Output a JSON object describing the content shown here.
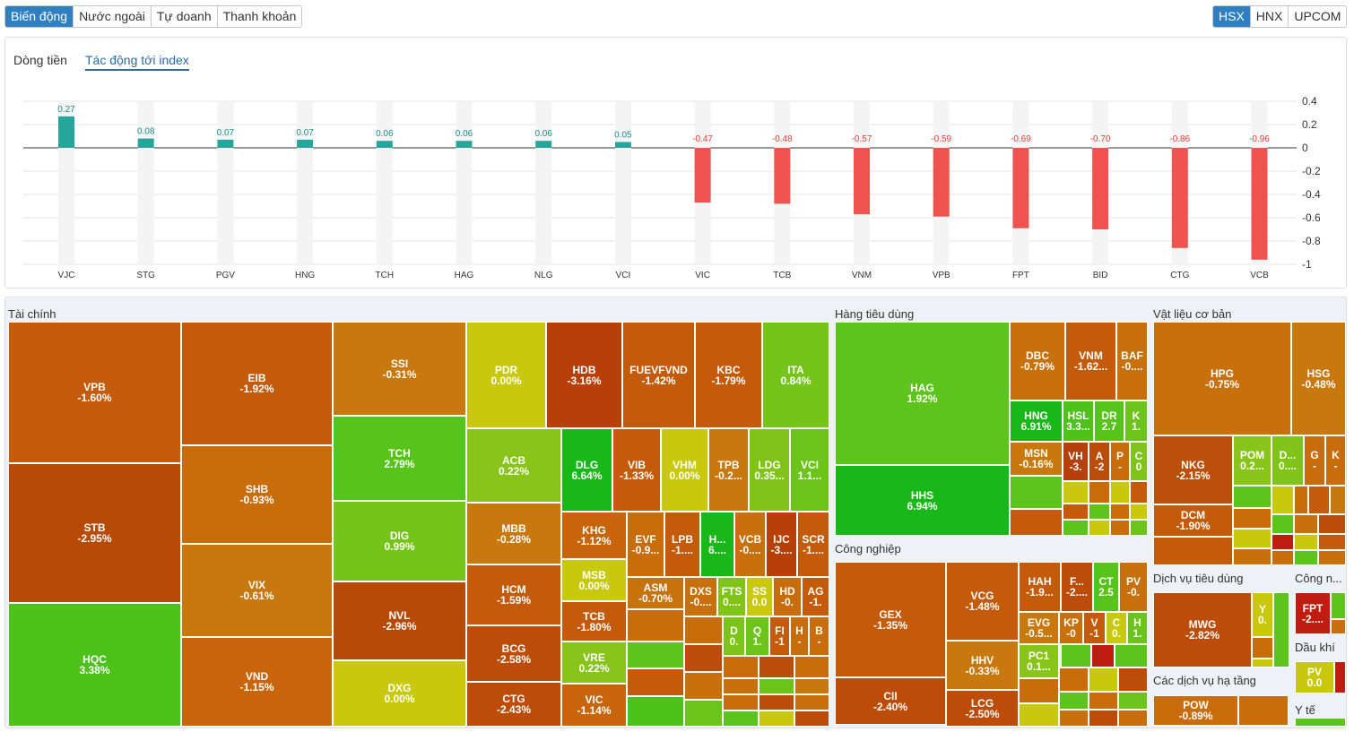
{
  "left_tabs": [
    {
      "label": "Biến động",
      "active": true
    },
    {
      "label": "Nước ngoài",
      "active": false
    },
    {
      "label": "Tự doanh",
      "active": false
    },
    {
      "label": "Thanh khoản",
      "active": false
    }
  ],
  "exchange_tabs": [
    {
      "label": "HSX",
      "active": true
    },
    {
      "label": "HNX",
      "active": false
    },
    {
      "label": "UPCOM",
      "active": false
    }
  ],
  "chart_tabs": [
    {
      "label": "Dòng tiền",
      "active": false
    },
    {
      "label": "Tác động tới index",
      "active": true
    }
  ],
  "colors": {
    "positive": "#26a69a",
    "negative": "#ef5350",
    "accent": "#2f7fc1"
  },
  "chart_data": {
    "type": "bar",
    "categories": [
      "VJC",
      "STG",
      "PGV",
      "HNG",
      "TCH",
      "HAG",
      "NLG",
      "VCI",
      "VIC",
      "TCB",
      "VNM",
      "VPB",
      "FPT",
      "BID",
      "CTG",
      "VCB"
    ],
    "values": [
      0.27,
      0.08,
      0.07,
      0.07,
      0.06,
      0.06,
      0.06,
      0.05,
      -0.47,
      -0.48,
      -0.57,
      -0.59,
      -0.69,
      -0.7,
      -0.86,
      -0.96
    ],
    "value_labels": [
      "0.27",
      "0.08",
      "0.07",
      "0.07",
      "0.06",
      "0.06",
      "0.06",
      "0.05",
      "-0.47",
      "-0.48",
      "-0.57",
      "-0.59",
      "-0.69",
      "-0.70",
      "-0.86",
      "-0.96"
    ],
    "yticks": [
      "0.4",
      "0.2",
      "0",
      "-0.2",
      "-0.4",
      "-0.6",
      "-0.8",
      "-1"
    ],
    "ylim": [
      -1,
      0.4
    ],
    "grid": true,
    "title": "",
    "xlabel": "",
    "ylabel": ""
  },
  "sectors": [
    {
      "name": "Tài chính"
    },
    {
      "name": "Hàng tiêu dùng"
    },
    {
      "name": "Vật liệu cơ bản"
    },
    {
      "name": "Công nghiệp"
    },
    {
      "name": "Dịch vụ tiêu dùng"
    },
    {
      "name": "Công n..."
    },
    {
      "name": "Dầu khí"
    },
    {
      "name": "Các dịch vụ hạ tầng"
    },
    {
      "name": "Y tế"
    }
  ],
  "tiles": [
    {
      "code": "VPB",
      "pct": "-1.60%",
      "color": "#c45b0a"
    },
    {
      "code": "STB",
      "pct": "-2.95%",
      "color": "#b84a08"
    },
    {
      "code": "HQC",
      "pct": "3.38%",
      "color": "#4cc21a"
    },
    {
      "code": "EIB",
      "pct": "-1.92%",
      "color": "#c45b0a"
    },
    {
      "code": "SHB",
      "pct": "-0.93%",
      "color": "#c86c0c"
    },
    {
      "code": "VIX",
      "pct": "-0.61%",
      "color": "#c8780c"
    },
    {
      "code": "VND",
      "pct": "-1.15%",
      "color": "#c8650b"
    },
    {
      "code": "SSI",
      "pct": "-0.31%",
      "color": "#c8780c"
    },
    {
      "code": "TCH",
      "pct": "2.79%",
      "color": "#56c41a"
    },
    {
      "code": "DIG",
      "pct": "0.99%",
      "color": "#74c41a"
    },
    {
      "code": "NVL",
      "pct": "-2.96%",
      "color": "#b84a08"
    },
    {
      "code": "DXG",
      "pct": "0.00%",
      "color": "#c8c80c"
    },
    {
      "code": "PDR",
      "pct": "0.00%",
      "color": "#c8c80c"
    },
    {
      "code": "HDB",
      "pct": "-3.16%",
      "color": "#b84008"
    },
    {
      "code": "FUEVFVND",
      "pct": "-1.42%",
      "color": "#c45b0a"
    },
    {
      "code": "KBC",
      "pct": "-1.79%",
      "color": "#c45b0a"
    },
    {
      "code": "ITA",
      "pct": "0.84%",
      "color": "#74c41a"
    },
    {
      "code": "ACB",
      "pct": "0.22%",
      "color": "#88c41a"
    },
    {
      "code": "MBB",
      "pct": "-0.28%",
      "color": "#c8780c"
    },
    {
      "code": "HCM",
      "pct": "-1.59%",
      "color": "#c45b0a"
    },
    {
      "code": "BCG",
      "pct": "-2.58%",
      "color": "#bc4c08"
    },
    {
      "code": "CTG",
      "pct": "-2.43%",
      "color": "#bc4c08"
    },
    {
      "code": "DLG",
      "pct": "6.64%",
      "color": "#18b818"
    },
    {
      "code": "VIB",
      "pct": "-1.33%",
      "color": "#c45b0a"
    },
    {
      "code": "VHM",
      "pct": "0.00%",
      "color": "#c8c80c"
    },
    {
      "code": "TPB",
      "pct": "-0.2...",
      "color": "#c8780c"
    },
    {
      "code": "LDG",
      "pct": "0.35...",
      "color": "#80c41a"
    },
    {
      "code": "VCI",
      "pct": "1.1...",
      "color": "#6cc41a"
    },
    {
      "code": "KHG",
      "pct": "-1.12%",
      "color": "#c8650b"
    },
    {
      "code": "EVF",
      "pct": "-0.9...",
      "color": "#c86c0c"
    },
    {
      "code": "LPB",
      "pct": "-1....",
      "color": "#c45b0a"
    },
    {
      "code": "H...",
      "pct": "6....",
      "color": "#18b818"
    },
    {
      "code": "VCB",
      "pct": "-0....",
      "color": "#c8700c"
    },
    {
      "code": "IJC",
      "pct": "-3....",
      "color": "#b84008"
    },
    {
      "code": "SCR",
      "pct": "-1....",
      "color": "#c45b0a"
    },
    {
      "code": "MSB",
      "pct": "0.00%",
      "color": "#c8c80c"
    },
    {
      "code": "ASM",
      "pct": "-0.70%",
      "color": "#c8720c"
    },
    {
      "code": "DXS",
      "pct": "-0....",
      "color": "#c8700c"
    },
    {
      "code": "FTS",
      "pct": "0....",
      "color": "#80c41a"
    },
    {
      "code": "SS",
      "pct": "0.0",
      "color": "#c8c80c"
    },
    {
      "code": "HD",
      "pct": "-0.",
      "color": "#c86c0c"
    },
    {
      "code": "AG",
      "pct": "-1.",
      "color": "#c45b0a"
    },
    {
      "code": "TCB",
      "pct": "-1.80%",
      "color": "#c45b0a"
    },
    {
      "code": "D",
      "pct": "0.",
      "color": "#7cc41a"
    },
    {
      "code": "Q",
      "pct": "1.",
      "color": "#6cc41a"
    },
    {
      "code": "FI",
      "pct": "-1",
      "color": "#c45b0a"
    },
    {
      "code": "H",
      "pct": "-",
      "color": "#c86c0c"
    },
    {
      "code": "B",
      "pct": "-",
      "color": "#c86c0c"
    },
    {
      "code": "VRE",
      "pct": "0.22%",
      "color": "#88c41a"
    },
    {
      "code": "VIC",
      "pct": "-1.14%",
      "color": "#c8650b"
    },
    {
      "code": "HAG",
      "pct": "1.92%",
      "color": "#5cc41a"
    },
    {
      "code": "HHS",
      "pct": "6.94%",
      "color": "#18b818"
    },
    {
      "code": "DBC",
      "pct": "-0.79%",
      "color": "#c8700c"
    },
    {
      "code": "VNM",
      "pct": "-1.62...",
      "color": "#c45b0a"
    },
    {
      "code": "BAF",
      "pct": "-0....",
      "color": "#c8700c"
    },
    {
      "code": "HNG",
      "pct": "6.91%",
      "color": "#18b818"
    },
    {
      "code": "HSL",
      "pct": "3.3...",
      "color": "#4cc21a"
    },
    {
      "code": "DR",
      "pct": "2.7",
      "color": "#56c41a"
    },
    {
      "code": "K",
      "pct": "1.",
      "color": "#6cc41a"
    },
    {
      "code": "MSN",
      "pct": "-0.16%",
      "color": "#c8780c"
    },
    {
      "code": "VH",
      "pct": "-3.",
      "color": "#b84008"
    },
    {
      "code": "A",
      "pct": "-2",
      "color": "#bc4c08"
    },
    {
      "code": "P",
      "pct": "-",
      "color": "#c86c0c"
    },
    {
      "code": "C",
      "pct": "0",
      "color": "#80c41a"
    },
    {
      "code": "HPG",
      "pct": "-0.75%",
      "color": "#c8700c"
    },
    {
      "code": "HSG",
      "pct": "-0.48%",
      "color": "#c8780c"
    },
    {
      "code": "NKG",
      "pct": "-2.15%",
      "color": "#bc500a"
    },
    {
      "code": "POM",
      "pct": "0.2...",
      "color": "#88c41a"
    },
    {
      "code": "D...",
      "pct": "0....",
      "color": "#80c41a"
    },
    {
      "code": "G",
      "pct": "-",
      "color": "#c86c0c"
    },
    {
      "code": "K",
      "pct": "-",
      "color": "#c86c0c"
    },
    {
      "code": "DCM",
      "pct": "-1.90%",
      "color": "#c45b0a"
    },
    {
      "code": "GEX",
      "pct": "-1.35%",
      "color": "#c45b0a"
    },
    {
      "code": "CII",
      "pct": "-2.40%",
      "color": "#bc4c08"
    },
    {
      "code": "VCG",
      "pct": "-1.48%",
      "color": "#c45b0a"
    },
    {
      "code": "HHV",
      "pct": "-0.33%",
      "color": "#c8780c"
    },
    {
      "code": "LCG",
      "pct": "-2.50%",
      "color": "#bc4c08"
    },
    {
      "code": "HAH",
      "pct": "-1.9...",
      "color": "#c45b0a"
    },
    {
      "code": "F...",
      "pct": "-2....",
      "color": "#bc4c08"
    },
    {
      "code": "CT",
      "pct": "2.5",
      "color": "#56c41a"
    },
    {
      "code": "PV",
      "pct": "-0.",
      "color": "#c8700c"
    },
    {
      "code": "EVG",
      "pct": "-0.5...",
      "color": "#c8780c"
    },
    {
      "code": "KP",
      "pct": "-0",
      "color": "#c8700c"
    },
    {
      "code": "V",
      "pct": "-1",
      "color": "#c45b0a"
    },
    {
      "code": "C",
      "pct": "0.",
      "color": "#c8c80c"
    },
    {
      "code": "H",
      "pct": "1.",
      "color": "#6cc41a"
    },
    {
      "code": "PC1",
      "pct": "0.1...",
      "color": "#88c41a"
    },
    {
      "code": "MWG",
      "pct": "-2.82%",
      "color": "#bc4c08"
    },
    {
      "code": "Y",
      "pct": "0.",
      "color": "#c8c80c"
    },
    {
      "code": "FPT",
      "pct": "-2....",
      "color": "#c01c10"
    },
    {
      "code": "PV",
      "pct": "0.0",
      "color": "#c8c80c"
    },
    {
      "code": "POW",
      "pct": "-0.89%",
      "color": "#c86c0c"
    }
  ]
}
